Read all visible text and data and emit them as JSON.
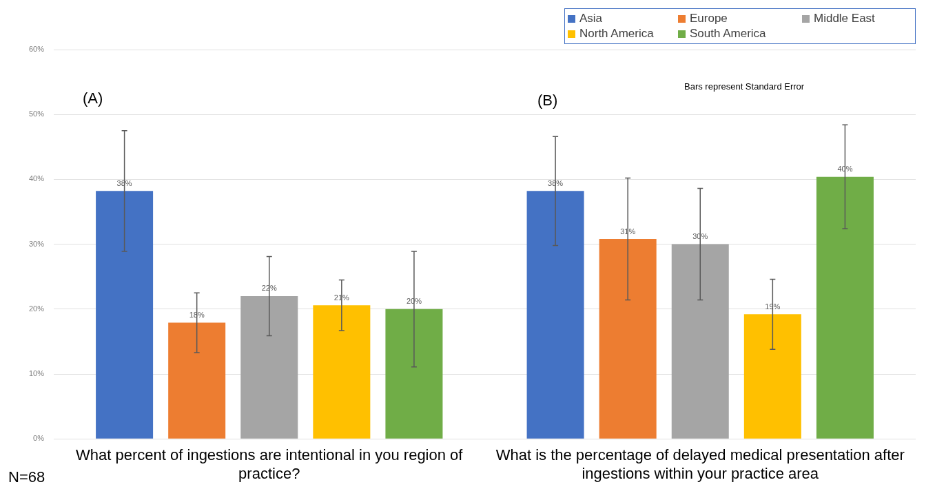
{
  "chart_data": {
    "type": "bar",
    "categories": [
      "What percent of ingestions are intentional in you region of practice?",
      "What is the percentage of delayed medical presentation after ingestions within your practice area"
    ],
    "series": [
      {
        "name": "Asia",
        "color": "#4472c4",
        "values": [
          38.2,
          38.2
        ],
        "errors": [
          9.3,
          8.4
        ],
        "value_labels": [
          "38%",
          "38%"
        ]
      },
      {
        "name": "Europe",
        "color": "#ed7d31",
        "values": [
          17.9,
          30.8
        ],
        "errors": [
          4.6,
          9.4
        ],
        "value_labels": [
          "18%",
          "31%"
        ]
      },
      {
        "name": "Middle East",
        "color": "#a5a5a5",
        "values": [
          22.0,
          30.0
        ],
        "errors": [
          6.1,
          8.6
        ],
        "value_labels": [
          "22%",
          "30%"
        ]
      },
      {
        "name": "North America",
        "color": "#ffc000",
        "values": [
          20.6,
          19.2
        ],
        "errors": [
          3.9,
          5.4
        ],
        "value_labels": [
          "21%",
          "19%"
        ]
      },
      {
        "name": "South America",
        "color": "#70ad47",
        "values": [
          20.0,
          40.4
        ],
        "errors": [
          8.9,
          8.0
        ],
        "value_labels": [
          "20%",
          "40%"
        ]
      }
    ],
    "ylim": [
      0,
      60
    ],
    "yticks": [
      {
        "value": 0,
        "label": "0%"
      },
      {
        "value": 10,
        "label": "10%"
      },
      {
        "value": 20,
        "label": "20%"
      },
      {
        "value": 30,
        "label": "30%"
      },
      {
        "value": 40,
        "label": "40%"
      },
      {
        "value": 50,
        "label": "50%"
      },
      {
        "value": 60,
        "label": "60%"
      }
    ],
    "grid": "y",
    "legend": "top right",
    "annotations": [
      "(A)",
      "(B)",
      "Bars represent Standard Error",
      "N=68"
    ]
  }
}
